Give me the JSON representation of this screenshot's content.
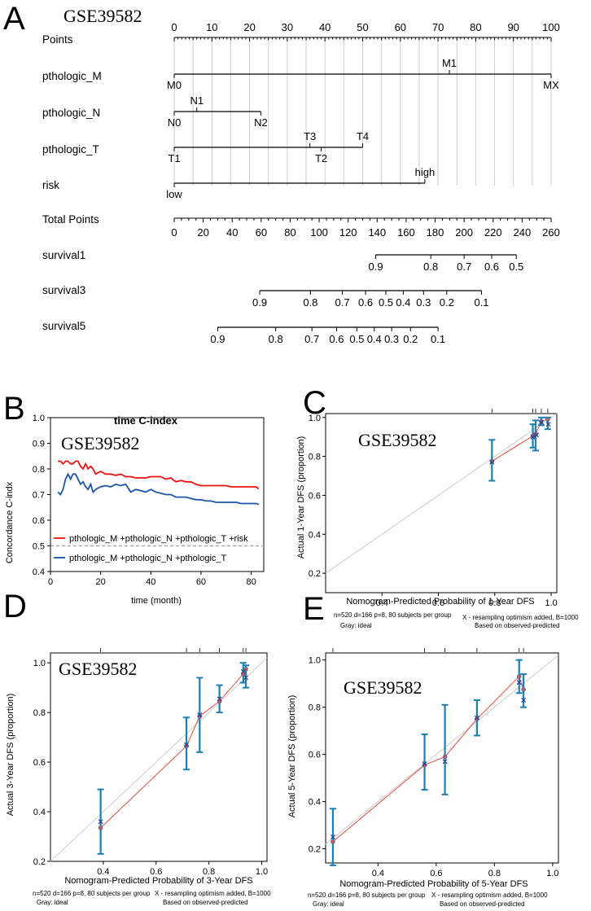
{
  "chart_data": [
    {
      "panel": "A",
      "type": "nomogram",
      "title": "GSE39582",
      "points_axis": {
        "label": "Points",
        "ticks": [
          0,
          10,
          20,
          30,
          40,
          50,
          60,
          70,
          80,
          90,
          100
        ]
      },
      "variables": [
        {
          "name": "pthologic_M",
          "levels": [
            {
              "label": "M0",
              "points": 0
            },
            {
              "label": "M1",
              "points": 73
            },
            {
              "label": "MX",
              "points": 100
            }
          ]
        },
        {
          "name": "pthologic_N",
          "levels": [
            {
              "label": "N0",
              "points": 0
            },
            {
              "label": "N1",
              "points": 6
            },
            {
              "label": "N2",
              "points": 23
            }
          ]
        },
        {
          "name": "pthologic_T",
          "levels": [
            {
              "label": "T1",
              "points": 0
            },
            {
              "label": "T3",
              "points": 36
            },
            {
              "label": "T2",
              "points": 39
            },
            {
              "label": "T4",
              "points": 50
            }
          ]
        },
        {
          "name": "risk",
          "levels": [
            {
              "label": "low",
              "points": 0
            },
            {
              "label": "high",
              "points": 66.5
            }
          ]
        }
      ],
      "total_points_axis": {
        "label": "Total Points",
        "ticks": [
          0,
          20,
          40,
          60,
          80,
          100,
          120,
          140,
          160,
          180,
          200,
          220,
          240,
          260
        ]
      },
      "survival_axes": [
        {
          "name": "survival1",
          "ticks": [
            {
              "label": "0.9",
              "total": 139
            },
            {
              "label": "0.8",
              "total": 177
            },
            {
              "label": "0.7",
              "total": 200
            },
            {
              "label": "0.6",
              "total": 219
            },
            {
              "label": "0.5",
              "total": 236
            }
          ]
        },
        {
          "name": "survival3",
          "ticks": [
            {
              "label": "0.9",
              "total": 59
            },
            {
              "label": "0.8",
              "total": 94
            },
            {
              "label": "0.7",
              "total": 116
            },
            {
              "label": "0.6",
              "total": 132
            },
            {
              "label": "0.5",
              "total": 146
            },
            {
              "label": "0.4",
              "total": 158
            },
            {
              "label": "0.3",
              "total": 172
            },
            {
              "label": "0.2",
              "total": 188
            },
            {
              "label": "0.1",
              "total": 212
            }
          ]
        },
        {
          "name": "survival5",
          "ticks": [
            {
              "label": "0.9",
              "total": 30
            },
            {
              "label": "0.8",
              "total": 70
            },
            {
              "label": "0.7",
              "total": 95
            },
            {
              "label": "0.6",
              "total": 112
            },
            {
              "label": "0.5",
              "total": 126
            },
            {
              "label": "0.4",
              "total": 138
            },
            {
              "label": "0.3",
              "total": 150
            },
            {
              "label": "0.2",
              "total": 163
            },
            {
              "label": "0.1",
              "total": 182
            }
          ]
        }
      ]
    },
    {
      "panel": "B",
      "type": "line",
      "title": "time C-index",
      "subtitle": "GSE39582",
      "xlabel": "time (month)",
      "ylabel": "Concordance C-indx",
      "xlim": [
        0,
        85
      ],
      "ylim": [
        0.4,
        1.0
      ],
      "xticks": [
        0,
        20,
        40,
        60,
        80
      ],
      "yticks": [
        0.4,
        0.5,
        0.6,
        0.7,
        0.8,
        0.9,
        1.0
      ],
      "reference_line": 0.5,
      "series": [
        {
          "name": "pthologic_M +pthologic_N +pthologic_T +risk",
          "color": "#ee1111",
          "x": [
            3,
            4,
            5,
            6,
            7,
            8,
            9,
            10,
            11,
            12,
            13,
            14,
            15,
            16,
            17,
            18,
            20,
            22,
            24,
            26,
            28,
            30,
            32,
            34,
            36,
            38,
            40,
            42,
            44,
            46,
            48,
            50,
            52,
            54,
            56,
            58,
            60,
            62,
            64,
            66,
            68,
            70,
            72,
            74,
            76,
            78,
            80,
            82,
            83
          ],
          "y": [
            0.83,
            0.83,
            0.82,
            0.83,
            0.83,
            0.82,
            0.82,
            0.83,
            0.83,
            0.81,
            0.8,
            0.82,
            0.8,
            0.81,
            0.8,
            0.78,
            0.79,
            0.78,
            0.78,
            0.775,
            0.78,
            0.77,
            0.77,
            0.765,
            0.765,
            0.765,
            0.77,
            0.77,
            0.77,
            0.76,
            0.765,
            0.75,
            0.755,
            0.75,
            0.75,
            0.74,
            0.735,
            0.735,
            0.735,
            0.735,
            0.735,
            0.735,
            0.73,
            0.73,
            0.73,
            0.73,
            0.73,
            0.73,
            0.722
          ]
        },
        {
          "name": "pthologic_M +pthologic_N +pthologic_T",
          "color": "#1a55a8",
          "x": [
            3,
            4,
            5,
            6,
            7,
            8,
            9,
            10,
            11,
            12,
            13,
            14,
            15,
            16,
            17,
            18,
            20,
            22,
            24,
            26,
            28,
            30,
            32,
            34,
            36,
            38,
            40,
            42,
            44,
            46,
            48,
            50,
            52,
            54,
            56,
            58,
            60,
            62,
            64,
            66,
            68,
            70,
            72,
            74,
            76,
            78,
            80,
            82,
            83
          ],
          "y": [
            0.71,
            0.7,
            0.72,
            0.76,
            0.78,
            0.76,
            0.78,
            0.78,
            0.76,
            0.74,
            0.75,
            0.73,
            0.72,
            0.74,
            0.71,
            0.72,
            0.73,
            0.735,
            0.73,
            0.74,
            0.735,
            0.74,
            0.71,
            0.72,
            0.715,
            0.71,
            0.72,
            0.71,
            0.705,
            0.7,
            0.7,
            0.69,
            0.69,
            0.69,
            0.685,
            0.68,
            0.68,
            0.675,
            0.675,
            0.67,
            0.67,
            0.67,
            0.67,
            0.67,
            0.665,
            0.665,
            0.665,
            0.665,
            0.662
          ]
        }
      ]
    },
    {
      "panel": "C",
      "type": "scatter",
      "subtitle": "GSE39582",
      "xlabel": "Nomogram-Predicted Probability of 1-Year DFS",
      "ylabel": "Actual 1-Year DFS (proportion)",
      "xlim": [
        0.2,
        1.02
      ],
      "ylim": [
        0.1,
        1.02
      ],
      "xticks": [
        0.4,
        0.6,
        0.8,
        1.0
      ],
      "yticks": [
        0.2,
        0.4,
        0.6,
        0.8,
        1.0
      ],
      "observed": [
        {
          "x": 0.79,
          "y": 0.775,
          "lo": 0.675,
          "hi": 0.885
        },
        {
          "x": 0.935,
          "y": 0.905,
          "lo": 0.845,
          "hi": 0.965
        },
        {
          "x": 0.945,
          "y": 0.915,
          "lo": 0.83,
          "hi": 0.985
        },
        {
          "x": 0.965,
          "y": 0.98,
          "lo": 0.96,
          "hi": 1.0
        },
        {
          "x": 0.988,
          "y": 0.99,
          "lo": 0.94,
          "hi": 1.0
        }
      ],
      "corrected": [
        {
          "x": 0.79,
          "y": 0.77
        },
        {
          "x": 0.935,
          "y": 0.9
        },
        {
          "x": 0.948,
          "y": 0.91
        },
        {
          "x": 0.965,
          "y": 0.975
        },
        {
          "x": 0.99,
          "y": 0.965
        }
      ],
      "footnotes": {
        "left": "n=520 d=166 p=8, 80 subjects per group",
        "left2": "Gray: ideal",
        "right": "X - resampling optimism added, B=1000",
        "right2": "Based on observed-predicted"
      }
    },
    {
      "panel": "D",
      "type": "scatter",
      "subtitle": "GSE39582",
      "xlabel": "Nomogram-Predicted Probability of 3-Year DFS",
      "ylabel": "Actual 3-Year DFS (proportion)",
      "xlim": [
        0.2,
        1.02
      ],
      "ylim": [
        0.2,
        1.04
      ],
      "xticks": [
        0.4,
        0.6,
        0.8,
        1.0
      ],
      "yticks": [
        0.2,
        0.4,
        0.6,
        0.8,
        1.0
      ],
      "observed": [
        {
          "x": 0.39,
          "y": 0.335,
          "lo": 0.23,
          "hi": 0.49
        },
        {
          "x": 0.715,
          "y": 0.665,
          "lo": 0.57,
          "hi": 0.78
        },
        {
          "x": 0.765,
          "y": 0.785,
          "lo": 0.64,
          "hi": 0.94
        },
        {
          "x": 0.84,
          "y": 0.845,
          "lo": 0.8,
          "hi": 0.91
        },
        {
          "x": 0.93,
          "y": 0.955,
          "lo": 0.92,
          "hi": 1.0
        },
        {
          "x": 0.94,
          "y": 0.975,
          "lo": 0.9,
          "hi": 0.99
        }
      ],
      "corrected": [
        {
          "x": 0.39,
          "y": 0.36
        },
        {
          "x": 0.715,
          "y": 0.67
        },
        {
          "x": 0.765,
          "y": 0.79
        },
        {
          "x": 0.84,
          "y": 0.855
        },
        {
          "x": 0.93,
          "y": 0.965
        },
        {
          "x": 0.94,
          "y": 0.94
        }
      ],
      "footnotes": {
        "left": "n=520 d=166 p=8, 80 subjects per group",
        "left2": "Gray: ideal",
        "right": "X - resampling optimism added, B=1000",
        "right2": "Based on observed-predicted"
      }
    },
    {
      "panel": "E",
      "type": "scatter",
      "subtitle": "GSE39582",
      "xlabel": "Nomogram-Predicted Probability of 5-Year DFS",
      "ylabel": "Actual 5-Year DFS (proportion)",
      "xlim": [
        0.22,
        1.02
      ],
      "ylim": [
        0.14,
        1.03
      ],
      "xticks": [
        0.4,
        0.6,
        0.8,
        1.0
      ],
      "yticks": [
        0.2,
        0.4,
        0.6,
        0.8,
        1.0
      ],
      "observed": [
        {
          "x": 0.245,
          "y": 0.23,
          "lo": 0.13,
          "hi": 0.37
        },
        {
          "x": 0.56,
          "y": 0.555,
          "lo": 0.45,
          "hi": 0.685
        },
        {
          "x": 0.63,
          "y": 0.59,
          "lo": 0.43,
          "hi": 0.81
        },
        {
          "x": 0.74,
          "y": 0.75,
          "lo": 0.68,
          "hi": 0.83
        },
        {
          "x": 0.885,
          "y": 0.93,
          "lo": 0.86,
          "hi": 1.0
        },
        {
          "x": 0.9,
          "y": 0.875,
          "lo": 0.8,
          "hi": 0.94
        }
      ],
      "corrected": [
        {
          "x": 0.245,
          "y": 0.25
        },
        {
          "x": 0.56,
          "y": 0.56
        },
        {
          "x": 0.63,
          "y": 0.57
        },
        {
          "x": 0.74,
          "y": 0.755
        },
        {
          "x": 0.885,
          "y": 0.905
        },
        {
          "x": 0.9,
          "y": 0.83
        }
      ],
      "footnotes": {
        "left": "n=520 d=166 p=8, 80 subjects per group",
        "left2": "Gray: ideal",
        "right": "X - resampling optimism added, B=1000",
        "right2": "Based on observed-predicted"
      }
    }
  ],
  "panel_letters": {
    "A": "A",
    "B": "B",
    "C": "C",
    "D": "D",
    "E": "E"
  }
}
